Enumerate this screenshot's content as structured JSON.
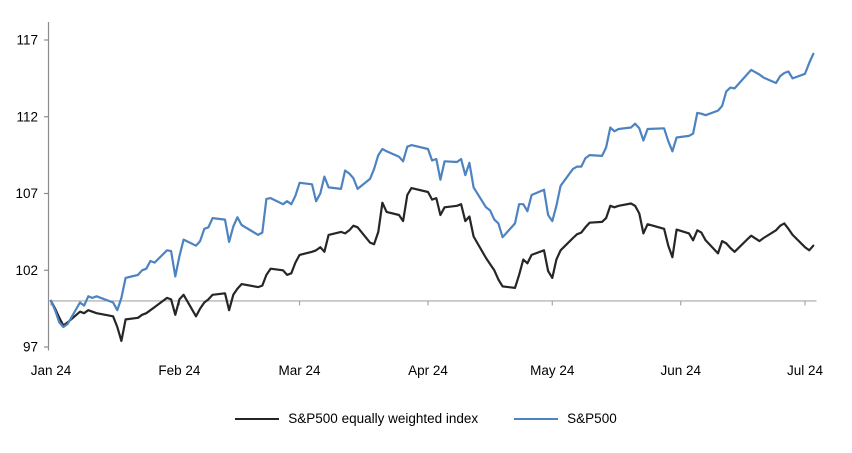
{
  "chart_data": {
    "type": "line",
    "title": "",
    "xlabel": "",
    "ylabel": "",
    "grid": false,
    "legend_position": "bottom",
    "y_ticks": [
      97,
      102,
      107,
      112,
      117
    ],
    "ylim": [
      97,
      118.5
    ],
    "baseline_value": 100,
    "x_ticks": [
      {
        "label": "Jan 24",
        "date": "01-01"
      },
      {
        "label": "Feb 24",
        "date": "02-01"
      },
      {
        "label": "Mar 24",
        "date": "03-01"
      },
      {
        "label": "Apr 24",
        "date": "04-01"
      },
      {
        "label": "May 24",
        "date": "05-01"
      },
      {
        "label": "Jun 24",
        "date": "06-01"
      },
      {
        "label": "Jul 24",
        "date": "07-01"
      }
    ],
    "x": [
      "01-01",
      "01-02",
      "01-03",
      "01-04",
      "01-05",
      "01-08",
      "01-09",
      "01-10",
      "01-11",
      "01-12",
      "01-16",
      "01-17",
      "01-18",
      "01-19",
      "01-22",
      "01-23",
      "01-24",
      "01-25",
      "01-26",
      "01-29",
      "01-30",
      "01-31",
      "02-01",
      "02-02",
      "02-05",
      "02-06",
      "02-07",
      "02-08",
      "02-09",
      "02-12",
      "02-13",
      "02-14",
      "02-15",
      "02-16",
      "02-20",
      "02-21",
      "02-22",
      "02-23",
      "02-26",
      "02-27",
      "02-28",
      "02-29",
      "03-01",
      "03-04",
      "03-05",
      "03-06",
      "03-07",
      "03-08",
      "03-11",
      "03-12",
      "03-13",
      "03-14",
      "03-15",
      "03-18",
      "03-19",
      "03-20",
      "03-21",
      "03-22",
      "03-25",
      "03-26",
      "03-27",
      "03-28",
      "04-01",
      "04-02",
      "04-03",
      "04-04",
      "04-05",
      "04-08",
      "04-09",
      "04-10",
      "04-11",
      "04-12",
      "04-15",
      "04-16",
      "04-17",
      "04-18",
      "04-19",
      "04-22",
      "04-23",
      "04-24",
      "04-25",
      "04-26",
      "04-29",
      "04-30",
      "05-01",
      "05-02",
      "05-03",
      "05-06",
      "05-07",
      "05-08",
      "05-09",
      "05-10",
      "05-13",
      "05-14",
      "05-15",
      "05-16",
      "05-17",
      "05-20",
      "05-21",
      "05-22",
      "05-23",
      "05-24",
      "05-28",
      "05-29",
      "05-30",
      "05-31",
      "06-03",
      "06-04",
      "06-05",
      "06-06",
      "06-07",
      "06-10",
      "06-11",
      "06-12",
      "06-13",
      "06-14",
      "06-17",
      "06-18",
      "06-20",
      "06-21",
      "06-24",
      "06-25",
      "06-26",
      "06-27",
      "06-28",
      "07-01",
      "07-02",
      "07-03"
    ],
    "series": [
      {
        "name": "S&P500 equally weighted index",
        "color": "#262626",
        "values": [
          100.0,
          99.5,
          98.9,
          98.4,
          98.6,
          99.3,
          99.2,
          99.4,
          99.3,
          99.2,
          99.0,
          98.3,
          97.4,
          98.8,
          98.9,
          99.1,
          99.2,
          99.4,
          99.6,
          100.2,
          100.1,
          99.1,
          100.1,
          100.4,
          99.0,
          99.5,
          99.9,
          100.1,
          100.4,
          100.5,
          99.4,
          100.4,
          100.8,
          101.1,
          100.9,
          101.0,
          101.7,
          102.1,
          102.0,
          101.7,
          101.8,
          102.5,
          103.0,
          103.2,
          103.3,
          103.5,
          103.2,
          104.3,
          104.5,
          104.4,
          104.6,
          104.9,
          104.8,
          103.8,
          103.7,
          104.5,
          106.4,
          105.8,
          105.6,
          105.2,
          106.9,
          107.35,
          107.1,
          106.6,
          106.7,
          105.6,
          106.1,
          106.2,
          106.3,
          105.2,
          105.5,
          104.2,
          102.8,
          102.4,
          102.0,
          101.4,
          100.95,
          100.85,
          101.7,
          102.7,
          102.45,
          103.0,
          103.3,
          101.95,
          101.5,
          102.7,
          103.3,
          104.1,
          104.35,
          104.45,
          104.8,
          105.1,
          105.15,
          105.4,
          106.2,
          106.1,
          106.2,
          106.35,
          106.2,
          105.7,
          104.4,
          105.0,
          104.7,
          103.6,
          102.85,
          104.65,
          104.4,
          103.95,
          104.6,
          104.45,
          103.95,
          103.1,
          103.9,
          103.75,
          103.45,
          103.2,
          104.0,
          104.25,
          103.9,
          104.1,
          104.6,
          104.9,
          105.05,
          104.7,
          104.3,
          103.5,
          103.3,
          103.6
        ]
      },
      {
        "name": "S&P500",
        "color": "#4c83c0",
        "values": [
          100.0,
          99.4,
          98.6,
          98.3,
          98.5,
          99.9,
          99.7,
          100.3,
          100.2,
          100.3,
          99.9,
          99.4,
          100.2,
          101.5,
          101.7,
          102.0,
          102.1,
          102.6,
          102.5,
          103.3,
          103.25,
          101.6,
          102.9,
          104.0,
          103.6,
          103.9,
          104.7,
          104.8,
          105.4,
          105.3,
          103.85,
          104.85,
          105.45,
          104.95,
          104.3,
          104.45,
          106.65,
          106.7,
          106.3,
          106.5,
          106.3,
          106.85,
          107.7,
          107.6,
          106.5,
          107.0,
          108.1,
          107.4,
          107.3,
          108.5,
          108.3,
          108.0,
          107.3,
          107.95,
          108.6,
          109.5,
          109.9,
          109.75,
          109.4,
          109.1,
          110.05,
          110.15,
          109.9,
          109.15,
          109.25,
          107.9,
          109.1,
          109.05,
          109.25,
          108.2,
          109.0,
          107.4,
          106.1,
          105.9,
          105.3,
          105.05,
          104.15,
          105.05,
          106.3,
          106.3,
          105.85,
          106.9,
          107.25,
          105.6,
          105.2,
          106.2,
          107.5,
          108.6,
          108.75,
          108.75,
          109.3,
          109.5,
          109.45,
          110.0,
          111.3,
          111.05,
          111.2,
          111.3,
          111.55,
          111.25,
          110.45,
          111.2,
          111.25,
          110.4,
          109.75,
          110.65,
          110.75,
          110.9,
          112.25,
          112.2,
          112.1,
          112.4,
          112.7,
          113.65,
          113.9,
          113.85,
          114.75,
          115.05,
          114.75,
          114.55,
          114.2,
          114.65,
          114.85,
          114.95,
          114.5,
          114.8,
          115.5,
          116.1
        ]
      }
    ]
  },
  "legend": {
    "items": [
      {
        "label": "S&P500 equally weighted index",
        "color": "#262626"
      },
      {
        "label": "S&P500",
        "color": "#4c83c0"
      }
    ]
  },
  "colors": {
    "axis": "#8c8c8c",
    "baseline": "#a6a6a6",
    "background": "#ffffff",
    "text": "#000000"
  }
}
